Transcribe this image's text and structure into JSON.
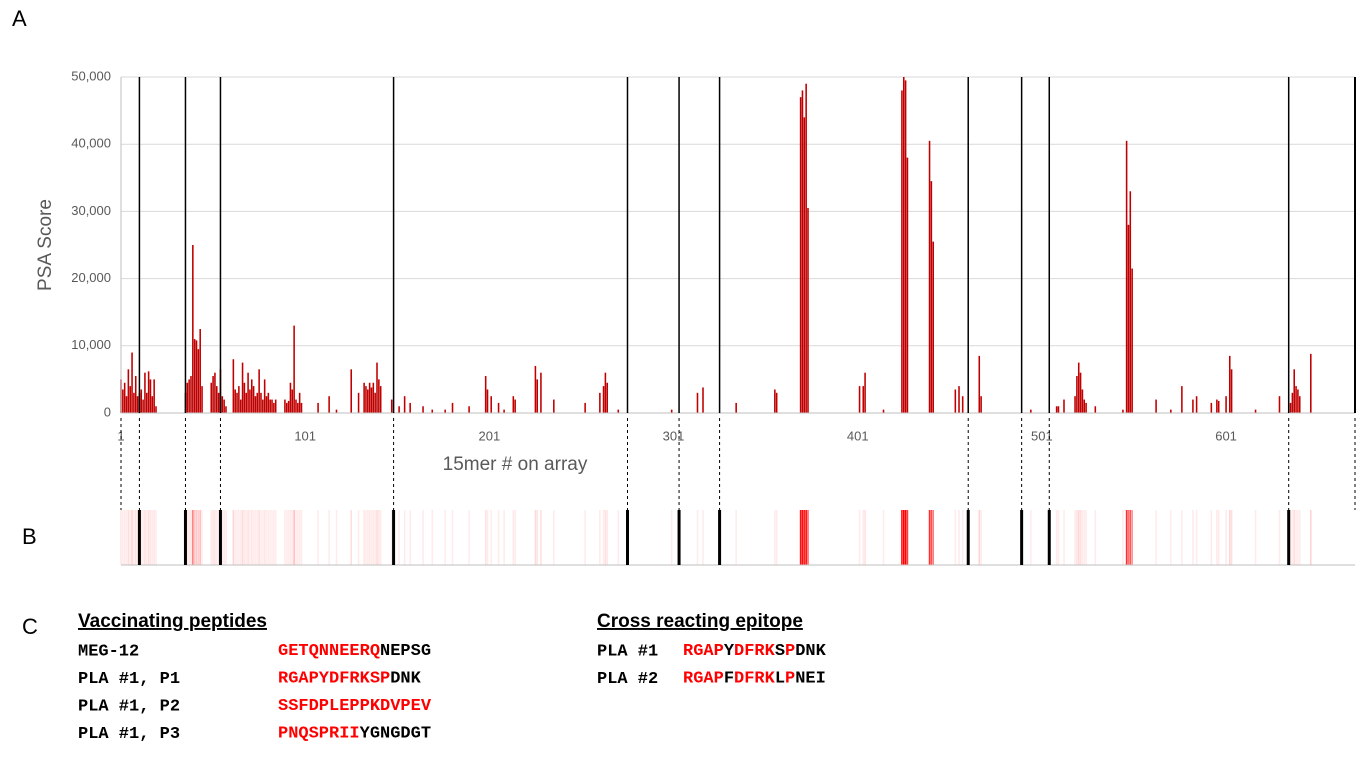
{
  "panel_labels": [
    "A",
    "B",
    "C"
  ],
  "chart_data": {
    "type": "bar",
    "ylabel": "PSA Score",
    "xlabel": "15mer # on array",
    "xlim": [
      1,
      671
    ],
    "xticks": [
      1,
      101,
      201,
      301,
      401,
      501,
      601
    ],
    "ylim": [
      0,
      50000
    ],
    "yticks": [
      0,
      {
        "value": 10000,
        "label": "10,000"
      },
      {
        "value": 20000,
        "label": "20,000"
      },
      {
        "value": 30000,
        "label": "30,000"
      },
      {
        "value": 40000,
        "label": "40,000"
      },
      {
        "value": 50000,
        "label": "50,000"
      }
    ],
    "grid": true,
    "color": "#c00000",
    "heatmap_color": "#ff0000",
    "boundaries": [
      11,
      36,
      55,
      149,
      276,
      304,
      326,
      461,
      490,
      505,
      635
    ],
    "x": [
      1,
      2,
      3,
      4,
      5,
      6,
      7,
      8,
      9,
      10,
      11,
      12,
      13,
      14,
      15,
      16,
      17,
      18,
      19,
      20,
      36,
      37,
      38,
      39,
      40,
      41,
      42,
      43,
      44,
      45,
      50,
      51,
      52,
      53,
      54,
      55,
      56,
      57,
      58,
      62,
      63,
      64,
      65,
      66,
      67,
      68,
      69,
      70,
      71,
      72,
      73,
      74,
      75,
      76,
      77,
      78,
      79,
      80,
      81,
      82,
      83,
      84,
      85,
      90,
      91,
      92,
      93,
      94,
      95,
      96,
      97,
      98,
      99,
      108,
      114,
      118,
      126,
      130,
      133,
      134,
      135,
      136,
      137,
      138,
      139,
      140,
      141,
      142,
      148,
      152,
      155,
      158,
      165,
      170,
      177,
      181,
      190,
      199,
      200,
      202,
      206,
      209,
      214,
      215,
      226,
      227,
      229,
      236,
      253,
      261,
      263,
      264,
      265,
      271,
      300,
      314,
      317,
      335,
      356,
      357,
      370,
      371,
      372,
      373,
      374,
      402,
      404,
      405,
      415,
      425,
      426,
      427,
      428,
      440,
      441,
      442,
      454,
      456,
      458,
      467,
      468,
      495,
      509,
      510,
      513,
      519,
      520,
      521,
      522,
      523,
      524,
      525,
      530,
      545,
      547,
      548,
      549,
      550,
      563,
      571,
      577,
      583,
      585,
      593,
      596,
      597,
      601,
      603,
      604,
      617,
      630,
      636,
      637,
      638,
      639,
      640,
      641,
      647
    ],
    "values": [
      5000,
      3500,
      4500,
      2500,
      6500,
      4000,
      9000,
      3000,
      5500,
      2500,
      3000,
      3500,
      2000,
      6000,
      3000,
      6200,
      5000,
      2500,
      5000,
      1000,
      3000,
      4500,
      5000,
      5500,
      25000,
      11000,
      10800,
      9500,
      12500,
      4000,
      4500,
      5500,
      6000,
      4000,
      3000,
      6500,
      2500,
      2000,
      1000,
      8000,
      3500,
      3000,
      4000,
      2000,
      7500,
      4500,
      3000,
      6000,
      3500,
      5000,
      4000,
      2500,
      3000,
      6500,
      3000,
      2000,
      5000,
      2500,
      3000,
      2000,
      2000,
      1500,
      2000,
      2000,
      1500,
      1800,
      4500,
      3500,
      13000,
      2000,
      1500,
      3000,
      1500,
      1500,
      2500,
      500,
      6500,
      3000,
      4500,
      4000,
      3500,
      4500,
      3800,
      4500,
      3000,
      7500,
      5000,
      4000,
      2000,
      1000,
      2500,
      1500,
      1000,
      500,
      500,
      1500,
      1000,
      5500,
      3500,
      2500,
      1500,
      500,
      2500,
      2000,
      7000,
      5000,
      6000,
      2000,
      1500,
      3000,
      4000,
      6000,
      4500,
      500,
      500,
      3000,
      3800,
      1500,
      3500,
      3000,
      47000,
      48000,
      44000,
      49000,
      30500,
      4000,
      4000,
      6000,
      500,
      48000,
      50000,
      49500,
      38000,
      40500,
      34500,
      25500,
      3500,
      4000,
      2500,
      8500,
      2500,
      500,
      1000,
      1000,
      2000,
      2500,
      5500,
      7500,
      6000,
      3500,
      2000,
      1500,
      1000,
      500,
      40500,
      28000,
      33000,
      21500,
      2000,
      500,
      4000,
      2000,
      2500,
      1500,
      2000,
      1800,
      2500,
      8500,
      6500,
      500,
      2500,
      1500,
      3000,
      6500,
      4000,
      3500,
      2500,
      8800
    ]
  },
  "peptides": {
    "vaccinating": {
      "title": "Vaccinating peptides",
      "rows": [
        {
          "name": "MEG-12",
          "segments": [
            {
              "text": "GETQNNEERQ",
              "color": "#ff0000"
            },
            {
              "text": "NEPSG",
              "color": "#000000"
            }
          ]
        },
        {
          "name": "PLA #1, P1",
          "segments": [
            {
              "text": "RGAPYDFRKSP",
              "color": "#ff0000"
            },
            {
              "text": "DNK",
              "color": "#000000"
            }
          ]
        },
        {
          "name": "PLA #1, P2",
          "segments": [
            {
              "text": "SSFDPLEPPKDVPEV",
              "color": "#ff0000"
            }
          ]
        },
        {
          "name": "PLA #1, P3",
          "segments": [
            {
              "text": "PNQSPRII",
              "color": "#ff0000"
            },
            {
              "text": "YGNGDGT",
              "color": "#000000"
            }
          ]
        }
      ]
    },
    "cross_reacting": {
      "title": "Cross reacting epitope",
      "rows": [
        {
          "name": "PLA #1",
          "segments": [
            {
              "text": "RGAP",
              "color": "#ff0000"
            },
            {
              "text": "Y",
              "color": "#000000"
            },
            {
              "text": "DFRK",
              "color": "#ff0000"
            },
            {
              "text": "S",
              "color": "#000000"
            },
            {
              "text": "P",
              "color": "#ff0000"
            },
            {
              "text": "DNK",
              "color": "#000000"
            }
          ]
        },
        {
          "name": "PLA #2",
          "segments": [
            {
              "text": "RGAP",
              "color": "#ff0000"
            },
            {
              "text": "F",
              "color": "#000000"
            },
            {
              "text": "DFRK",
              "color": "#ff0000"
            },
            {
              "text": "L",
              "color": "#000000"
            },
            {
              "text": "P",
              "color": "#ff0000"
            },
            {
              "text": "NEI",
              "color": "#000000"
            }
          ]
        }
      ]
    }
  }
}
